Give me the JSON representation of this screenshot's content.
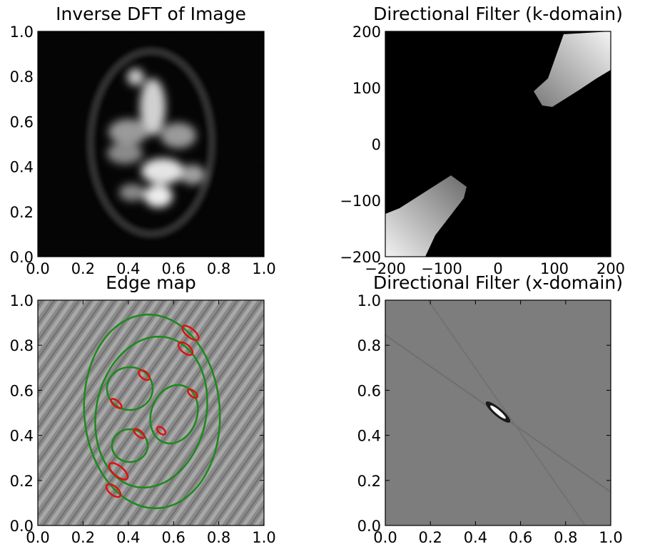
{
  "chart_data": [
    {
      "type": "image",
      "title": "Inverse DFT of Image",
      "xlim": [
        0,
        1
      ],
      "ylim": [
        0,
        1
      ],
      "xticks": [
        {
          "value": 0,
          "label": "0.0"
        },
        0.2,
        0.4,
        0.6,
        0.8,
        {
          "value": 1,
          "label": "1.0"
        }
      ],
      "yticks": [
        {
          "value": 0,
          "label": "0.0"
        },
        0.2,
        0.4,
        0.6,
        0.8,
        {
          "value": 1,
          "label": "1.0"
        }
      ]
    },
    {
      "type": "image",
      "title": "Directional Filter (k-domain)",
      "xlim": [
        -200,
        200
      ],
      "ylim": [
        -200,
        200
      ],
      "xticks": [
        {
          "value": -200,
          "label": "−200"
        },
        {
          "value": -100,
          "label": "−100"
        },
        0,
        100,
        200
      ],
      "yticks": [
        {
          "value": -200,
          "label": "−200"
        },
        {
          "value": -100,
          "label": "−100"
        },
        0,
        100,
        200
      ]
    },
    {
      "type": "image",
      "title": "Edge map",
      "xlim": [
        0,
        1
      ],
      "ylim": [
        0,
        1
      ],
      "xticks": [
        {
          "value": 0,
          "label": "0.0"
        },
        0.2,
        0.4,
        0.6,
        0.8,
        {
          "value": 1,
          "label": "1.0"
        }
      ],
      "yticks": [
        {
          "value": 0,
          "label": "0.0"
        },
        0.2,
        0.4,
        0.6,
        0.8,
        {
          "value": 1,
          "label": "1.0"
        }
      ]
    },
    {
      "type": "image",
      "title": "Directional Filter (x-domain)",
      "xlim": [
        0,
        1
      ],
      "ylim": [
        0,
        1
      ],
      "xticks": [
        {
          "value": 0,
          "label": "0.0"
        },
        0.2,
        0.4,
        0.6,
        0.8,
        {
          "value": 1,
          "label": "1.0"
        }
      ],
      "yticks": [
        {
          "value": 0,
          "label": "0.0"
        },
        0.2,
        0.4,
        0.6,
        0.8,
        {
          "value": 1,
          "label": "1.0"
        }
      ]
    }
  ]
}
